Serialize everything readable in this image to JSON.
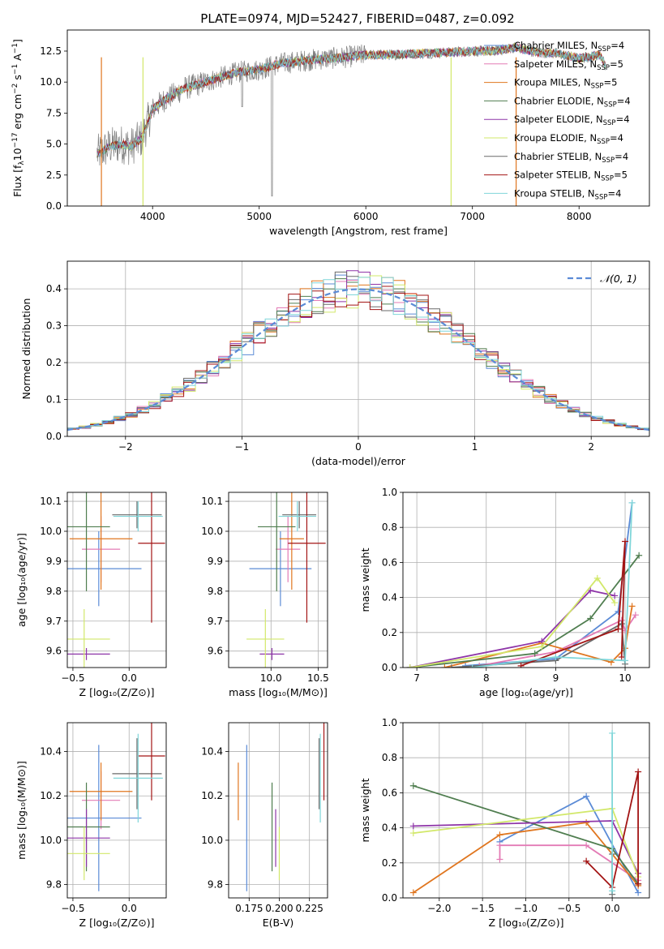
{
  "figure": {
    "title": "PLATE=0974, MJD=52427, FIBERID=0487, z=0.092"
  },
  "colors": {
    "Chabrier MILES": "#5b8bd6",
    "Salpeter MILES": "#e37bb5",
    "Kroupa MILES": "#e0761f",
    "Chabrier ELODIE": "#4f7d4f",
    "Salpeter ELODIE": "#8e35a8",
    "Kroupa ELODIE": "#d2e86a",
    "Chabrier STELIB": "#6a6a6a",
    "Salpeter STELIB": "#a31515",
    "Kroupa STELIB": "#7fd6d9"
  },
  "chart_data": [
    {
      "id": "spectrum",
      "type": "line",
      "xlabel": "wavelength [Angstrom, rest frame]",
      "ylabel": "Flux [fλ10⁻¹⁷ erg cm⁻² s⁻¹ A⁻¹]",
      "xlim": [
        3200,
        8660
      ],
      "ylim": [
        0,
        14.2
      ],
      "xticks": [
        4000,
        5000,
        6000,
        7000,
        8000
      ],
      "yticks": [
        0.0,
        2.5,
        5.0,
        7.5,
        10.0,
        12.5
      ],
      "ytick_labels": [
        "0.0",
        "2.5",
        "5.0",
        "7.5",
        "10.0",
        "12.5"
      ],
      "legend_position": "right",
      "legend": [
        {
          "name": "Chabrier MILES",
          "nssp": "4"
        },
        {
          "name": "Salpeter MILES",
          "nssp": "5"
        },
        {
          "name": "Kroupa MILES",
          "nssp": "5"
        },
        {
          "name": "Chabrier ELODIE",
          "nssp": "4"
        },
        {
          "name": "Salpeter ELODIE",
          "nssp": "4"
        },
        {
          "name": "Kroupa ELODIE",
          "nssp": "4"
        },
        {
          "name": "Chabrier STELIB",
          "nssp": "4"
        },
        {
          "name": "Salpeter STELIB",
          "nssp": "5"
        },
        {
          "name": "Kroupa STELIB",
          "nssp": "4"
        }
      ],
      "data_anchor_wavelength": [
        3480,
        3600,
        3700,
        3800,
        3900,
        4000,
        4100,
        4300,
        4500,
        4800,
        5000,
        5200,
        5500,
        5800,
        6000,
        6200,
        6500,
        6800,
        7000,
        7200,
        7400,
        7600,
        7800,
        8000,
        8200,
        8250
      ],
      "data_anchor_flux": [
        4.2,
        4.8,
        5.0,
        4.8,
        5.5,
        7.8,
        8.5,
        9.5,
        10.0,
        10.8,
        11.0,
        11.5,
        11.8,
        12.0,
        12.2,
        12.2,
        12.3,
        12.4,
        12.5,
        12.5,
        12.8,
        12.4,
        12.3,
        11.9,
        12.2,
        11.3
      ],
      "ylabel_parts": {
        "pre": "Flux [f",
        "sub": "λ",
        "mid1": "10",
        "sup1": "−17",
        "mid2": " erg cm",
        "sup2": "−2",
        "mid3": " s",
        "sup3": "−1",
        "mid4": " A",
        "sup4": "−1",
        "post": "]"
      }
    },
    {
      "id": "residuals",
      "type": "histogram",
      "xlabel": "(data-model)/error",
      "ylabel": "Normed distribution",
      "xlim": [
        -2.5,
        2.5
      ],
      "ylim": [
        0,
        0.475
      ],
      "xticks": [
        -2,
        -1,
        0,
        1,
        2
      ],
      "xtick_labels": [
        "−2",
        "−1",
        "0",
        "1",
        "2"
      ],
      "yticks": [
        0.0,
        0.1,
        0.2,
        0.3,
        0.4
      ],
      "ytick_labels": [
        "0.0",
        "0.1",
        "0.2",
        "0.3",
        "0.4"
      ],
      "grid": true,
      "bin_width": 0.1,
      "reference_curve": {
        "label": "𝒩(0, 1)",
        "mean": 0,
        "sigma": 1,
        "color": "#5b8bd6",
        "dash": true
      },
      "legend_position": "upper right"
    },
    {
      "id": "age-vs-Z",
      "type": "errorbar",
      "xlabel": "Z [log₁₀(Z/Z⊙)]",
      "ylabel": "age  [log₁₀(age/yr)]",
      "xlim": [
        -0.55,
        0.33
      ],
      "ylim": [
        9.545,
        10.13
      ],
      "xticks": [
        -0.5,
        0.0
      ],
      "xtick_labels": [
        "−0.5",
        "0.0"
      ],
      "yticks": [
        9.6,
        9.7,
        9.8,
        9.9,
        10.0,
        10.1
      ],
      "ytick_labels": [
        "9.6",
        "9.7",
        "9.8",
        "9.9",
        "10.0",
        "10.1"
      ],
      "grid": true,
      "points": [
        {
          "series": "Chabrier MILES",
          "x": -0.27,
          "xerr": 0.38,
          "y": 9.875,
          "yerr": 0.125
        },
        {
          "series": "Salpeter MILES",
          "x": -0.25,
          "xerr": 0.17,
          "y": 9.94,
          "yerr": 0.11
        },
        {
          "series": "Kroupa MILES",
          "x": -0.25,
          "xerr": 0.28,
          "y": 9.975,
          "yerr": 0.17
        },
        {
          "series": "Chabrier ELODIE",
          "x": -0.38,
          "xerr": 0.21,
          "y": 10.015,
          "yerr": 0.215
        },
        {
          "series": "Salpeter ELODIE",
          "x": -0.38,
          "xerr": 0.21,
          "y": 9.59,
          "yerr": 0.02
        },
        {
          "series": "Kroupa ELODIE",
          "x": -0.4,
          "xerr": 0.23,
          "y": 9.64,
          "yerr": 0.1
        },
        {
          "series": "Chabrier STELIB",
          "x": 0.07,
          "xerr": 0.22,
          "y": 10.055,
          "yerr": 0.045
        },
        {
          "series": "Salpeter STELIB",
          "x": 0.2,
          "xerr": 0.12,
          "y": 9.96,
          "yerr": 0.265
        },
        {
          "series": "Kroupa STELIB",
          "x": 0.08,
          "xerr": 0.22,
          "y": 10.05,
          "yerr": 0.05
        }
      ]
    },
    {
      "id": "age-vs-mass",
      "type": "errorbar",
      "xlabel": "mass [log₁₀(M/M⊙)]",
      "ylabel": "",
      "xlim": [
        9.55,
        10.6
      ],
      "ylim": [
        9.545,
        10.13
      ],
      "xticks": [
        10.0,
        10.5
      ],
      "xtick_labels": [
        "10.0",
        "10.5"
      ],
      "yticks": [
        9.6,
        9.7,
        9.8,
        9.9,
        10.0,
        10.1
      ],
      "ytick_labels": [
        "9.6",
        "9.7",
        "9.8",
        "9.9",
        "10.0",
        "10.1"
      ],
      "grid": true,
      "points": [
        {
          "series": "Chabrier MILES",
          "x": 10.1,
          "xerr": 0.33,
          "y": 9.875,
          "yerr": 0.125
        },
        {
          "series": "Salpeter MILES",
          "x": 10.18,
          "xerr": 0.13,
          "y": 9.94,
          "yerr": 0.11
        },
        {
          "series": "Kroupa MILES",
          "x": 10.22,
          "xerr": 0.13,
          "y": 9.975,
          "yerr": 0.17
        },
        {
          "series": "Chabrier ELODIE",
          "x": 10.06,
          "xerr": 0.2,
          "y": 10.015,
          "yerr": 0.215
        },
        {
          "series": "Salpeter ELODIE",
          "x": 10.01,
          "xerr": 0.13,
          "y": 9.59,
          "yerr": 0.02
        },
        {
          "series": "Kroupa ELODIE",
          "x": 9.94,
          "xerr": 0.2,
          "y": 9.64,
          "yerr": 0.1
        },
        {
          "series": "Chabrier STELIB",
          "x": 10.3,
          "xerr": 0.18,
          "y": 10.055,
          "yerr": 0.045
        },
        {
          "series": "Salpeter STELIB",
          "x": 10.38,
          "xerr": 0.2,
          "y": 9.96,
          "yerr": 0.265
        },
        {
          "series": "Kroupa STELIB",
          "x": 10.28,
          "xerr": 0.2,
          "y": 10.05,
          "yerr": 0.05
        }
      ]
    },
    {
      "id": "mass-weight-vs-age",
      "type": "line",
      "xlabel": "age  [log₁₀(age/yr)]",
      "ylabel": "mass weight",
      "xlim": [
        6.8,
        10.35
      ],
      "ylim": [
        0.0,
        1.0
      ],
      "xticks": [
        7,
        8,
        9,
        10
      ],
      "xtick_labels": [
        "7",
        "8",
        "9",
        "10"
      ],
      "yticks": [
        0.0,
        0.2,
        0.4,
        0.6,
        0.8,
        1.0
      ],
      "ytick_labels": [
        "0.0",
        "0.2",
        "0.4",
        "0.6",
        "0.8",
        "1.0"
      ],
      "grid": true,
      "series": [
        {
          "name": "Chabrier MILES",
          "x": [
            7.7,
            9.0,
            9.9,
            10.1
          ],
          "y": [
            0.01,
            0.05,
            0.32,
            0.94
          ]
        },
        {
          "name": "Salpeter MILES",
          "x": [
            7.9,
            9.0,
            9.95,
            10.0,
            10.15
          ],
          "y": [
            0.01,
            0.09,
            0.27,
            0.21,
            0.3
          ]
        },
        {
          "name": "Kroupa MILES",
          "x": [
            7.4,
            8.8,
            9.8,
            10.0,
            10.1
          ],
          "y": [
            0.0,
            0.14,
            0.03,
            0.11,
            0.35
          ]
        },
        {
          "name": "Chabrier ELODIE",
          "x": [
            6.9,
            8.7,
            9.5,
            10.2
          ],
          "y": [
            0.0,
            0.08,
            0.28,
            0.64
          ]
        },
        {
          "name": "Salpeter ELODIE",
          "x": [
            6.9,
            8.8,
            9.5,
            9.85
          ],
          "y": [
            0.0,
            0.15,
            0.44,
            0.41
          ]
        },
        {
          "name": "Kroupa ELODIE",
          "x": [
            6.9,
            8.8,
            9.6,
            9.85
          ],
          "y": [
            0.0,
            0.12,
            0.51,
            0.37
          ]
        },
        {
          "name": "Chabrier STELIB",
          "x": [
            7.5,
            9.0,
            9.95,
            10.0
          ],
          "y": [
            0.0,
            0.04,
            0.25,
            0.02
          ]
        },
        {
          "name": "Salpeter STELIB",
          "x": [
            8.5,
            9.9,
            10.0,
            9.95
          ],
          "y": [
            0.01,
            0.22,
            0.72,
            0.06
          ]
        },
        {
          "name": "Kroupa STELIB",
          "x": [
            7.8,
            9.0,
            10.0,
            10.1
          ],
          "y": [
            0.0,
            0.06,
            0.04,
            0.94
          ]
        }
      ]
    },
    {
      "id": "mass-vs-Z",
      "type": "errorbar",
      "xlabel": "Z [log₁₀(Z/Z⊙)]",
      "ylabel": "mass [log₁₀(M/M⊙)]",
      "xlim": [
        -0.55,
        0.33
      ],
      "ylim": [
        9.74,
        10.53
      ],
      "xticks": [
        -0.5,
        0.0
      ],
      "xtick_labels": [
        "−0.5",
        "0.0"
      ],
      "yticks": [
        9.8,
        10.0,
        10.2,
        10.4
      ],
      "ytick_labels": [
        "9.8",
        "10.0",
        "10.2",
        "10.4"
      ],
      "grid": true,
      "points": [
        {
          "series": "Chabrier MILES",
          "x": -0.27,
          "xerr": 0.38,
          "y": 10.1,
          "yerr": 0.33
        },
        {
          "series": "Salpeter MILES",
          "x": -0.25,
          "xerr": 0.17,
          "y": 10.18,
          "yerr": 0.13
        },
        {
          "series": "Kroupa MILES",
          "x": -0.25,
          "xerr": 0.28,
          "y": 10.22,
          "yerr": 0.13
        },
        {
          "series": "Chabrier ELODIE",
          "x": -0.38,
          "xerr": 0.21,
          "y": 10.06,
          "yerr": 0.2
        },
        {
          "series": "Salpeter ELODIE",
          "x": -0.38,
          "xerr": 0.21,
          "y": 10.01,
          "yerr": 0.13
        },
        {
          "series": "Kroupa ELODIE",
          "x": -0.4,
          "xerr": 0.23,
          "y": 9.94,
          "yerr": 0.12
        },
        {
          "series": "Chabrier STELIB",
          "x": 0.07,
          "xerr": 0.22,
          "y": 10.3,
          "yerr": 0.16
        },
        {
          "series": "Salpeter STELIB",
          "x": 0.2,
          "xerr": 0.12,
          "y": 10.38,
          "yerr": 0.2
        },
        {
          "series": "Kroupa STELIB",
          "x": 0.08,
          "xerr": 0.22,
          "y": 10.28,
          "yerr": 0.2
        }
      ]
    },
    {
      "id": "mass-vs-ebv",
      "type": "errorbar",
      "xlabel": "E(B-V)",
      "ylabel": "",
      "xlim": [
        0.158,
        0.24
      ],
      "ylim": [
        9.74,
        10.53
      ],
      "xticks": [
        0.175,
        0.2,
        0.225
      ],
      "xtick_labels": [
        "0.175",
        "0.200",
        "0.225"
      ],
      "yticks": [
        9.8,
        10.0,
        10.2,
        10.4
      ],
      "ytick_labels": [
        "9.8",
        "10.0",
        "10.2",
        "10.4"
      ],
      "grid": true,
      "points": [
        {
          "series": "Kroupa MILES",
          "x": 0.166,
          "y": 10.22,
          "yerr": 0.13
        },
        {
          "series": "Chabrier MILES",
          "x": 0.173,
          "y": 10.1,
          "yerr": 0.33
        },
        {
          "series": "Chabrier ELODIE",
          "x": 0.194,
          "y": 10.06,
          "yerr": 0.2
        },
        {
          "series": "Salpeter ELODIE",
          "x": 0.197,
          "y": 10.01,
          "yerr": 0.13
        },
        {
          "series": "Kroupa ELODIE",
          "x": 0.2,
          "y": 9.94,
          "yerr": 0.12
        },
        {
          "series": "Chabrier STELIB",
          "x": 0.233,
          "y": 10.3,
          "yerr": 0.16
        },
        {
          "series": "Kroupa STELIB",
          "x": 0.234,
          "y": 10.28,
          "yerr": 0.2
        },
        {
          "series": "Salpeter STELIB",
          "x": 0.237,
          "y": 10.38,
          "yerr": 0.2
        }
      ]
    },
    {
      "id": "mass-weight-vs-Z",
      "type": "line",
      "xlabel": "Z [log₁₀(Z/Z⊙)]",
      "ylabel": "mass weight",
      "xlim": [
        -2.42,
        0.43
      ],
      "ylim": [
        0.0,
        1.0
      ],
      "xticks": [
        -2.0,
        -1.5,
        -1.0,
        -0.5,
        0.0
      ],
      "xtick_labels": [
        "−2.0",
        "−1.5",
        "−1.0",
        "−0.5",
        "0.0"
      ],
      "yticks": [
        0.0,
        0.2,
        0.4,
        0.6,
        0.8,
        1.0
      ],
      "ytick_labels": [
        "0.0",
        "0.2",
        "0.4",
        "0.6",
        "0.8",
        "1.0"
      ],
      "grid": true,
      "series": [
        {
          "name": "Chabrier MILES",
          "x": [
            -1.3,
            -0.3,
            0.3
          ],
          "y": [
            0.32,
            0.58,
            0.03
          ]
        },
        {
          "name": "Salpeter MILES",
          "x": [
            -1.3,
            -1.3,
            -0.3,
            0.3
          ],
          "y": [
            0.22,
            0.3,
            0.3,
            0.1
          ]
        },
        {
          "name": "Kroupa MILES",
          "x": [
            -2.3,
            -1.3,
            -0.3,
            0.3
          ],
          "y": [
            0.03,
            0.36,
            0.43,
            0.07
          ]
        },
        {
          "name": "Chabrier ELODIE",
          "x": [
            -2.3,
            0.0,
            0.3
          ],
          "y": [
            0.64,
            0.28,
            0.08
          ]
        },
        {
          "name": "Salpeter ELODIE",
          "x": [
            -2.3,
            0.0,
            0.3
          ],
          "y": [
            0.41,
            0.44,
            0.14
          ]
        },
        {
          "name": "Kroupa ELODIE",
          "x": [
            -2.3,
            0.0,
            0.3
          ],
          "y": [
            0.37,
            0.51,
            0.12
          ]
        },
        {
          "name": "Chabrier STELIB",
          "x": [
            0.0,
            0.0
          ],
          "y": [
            0.02,
            0.25
          ]
        },
        {
          "name": "Salpeter STELIB",
          "x": [
            -0.3,
            0.0,
            0.3,
            0.3
          ],
          "y": [
            0.21,
            0.06,
            0.72,
            0.08
          ]
        },
        {
          "name": "Kroupa STELIB",
          "x": [
            0.0,
            0.0
          ],
          "y": [
            0.04,
            0.94
          ]
        }
      ]
    }
  ]
}
